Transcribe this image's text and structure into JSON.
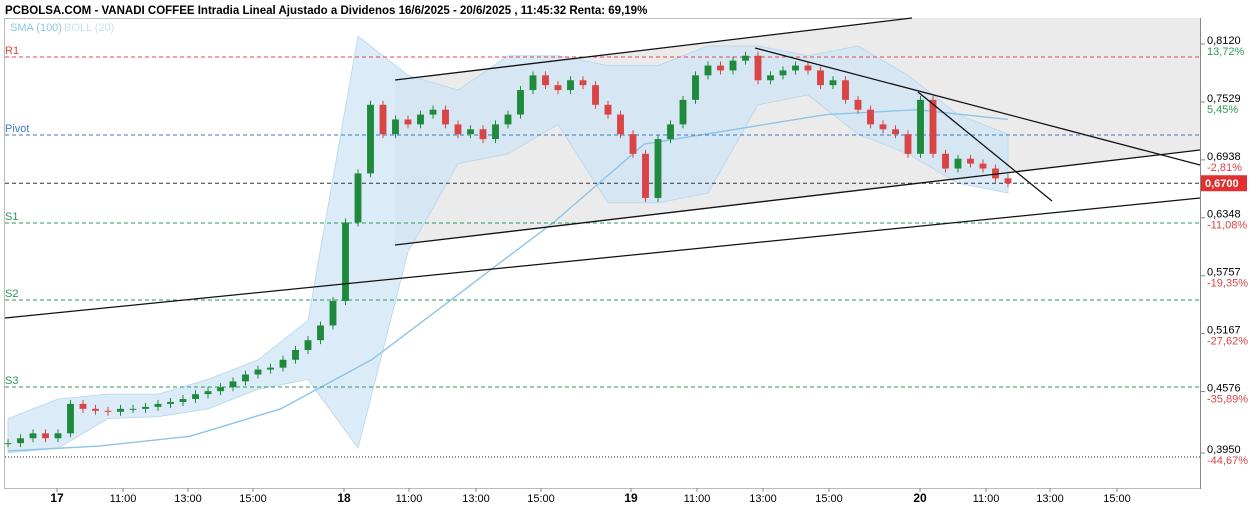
{
  "chart_data": {
    "type": "candlestick",
    "title": "PCBOLSA.COM - VANADI COFFEE Intradia Lineal Ajustado a Dividenos 16/6/2025 - 20/6/2025 , 11:45:32 Renta: 69,19%",
    "legend": [
      "SMA (100)",
      "BOLL (20)"
    ],
    "xticks": [
      "17",
      "11:00",
      "13:00",
      "15:00",
      "18",
      "11:00",
      "13:00",
      "15:00",
      "19",
      "11:00",
      "13:00",
      "15:00",
      "20",
      "11:00",
      "13:00",
      "15:00"
    ],
    "ylim": [
      0.36,
      0.84
    ],
    "yticks": [
      {
        "value": 0.812,
        "label": "0,8120"
      },
      {
        "value": 0.7529,
        "label": "0,7529"
      },
      {
        "value": 0.6938,
        "label": "0,6938"
      },
      {
        "value": 0.6348,
        "label": "0,6348"
      },
      {
        "value": 0.5757,
        "label": "0,5757"
      },
      {
        "value": 0.5167,
        "label": "0,5167"
      },
      {
        "value": 0.4576,
        "label": "0,4576"
      },
      {
        "value": 0.395,
        "label": "0,3950"
      }
    ],
    "pct_labels": [
      "13,72%",
      "5,45%",
      "-2,81%",
      "-11,08%",
      "-19,35%",
      "-27,62%",
      "-35,89%",
      "-44,67%"
    ],
    "last_price": {
      "value": 0.67,
      "label": "0,6700"
    },
    "levels": [
      {
        "name": "R1",
        "value": 0.7987,
        "color": "#e04848"
      },
      {
        "name": "Pivot",
        "value": 0.7192,
        "color": "#3a78c8"
      },
      {
        "name": "S1",
        "value": 0.6295,
        "color": "#2a9a5a"
      },
      {
        "name": "S2",
        "value": 0.551,
        "color": "#2a9a5a"
      },
      {
        "name": "S3",
        "value": 0.4623,
        "color": "#2a9a5a"
      }
    ],
    "up_color": "#1f8a3c",
    "down_color": "#d94545",
    "close": [
      0.405,
      0.41,
      0.415,
      0.41,
      0.415,
      0.445,
      0.44,
      0.438,
      0.437,
      0.44,
      0.44,
      0.442,
      0.445,
      0.447,
      0.45,
      0.455,
      0.458,
      0.462,
      0.468,
      0.475,
      0.48,
      0.482,
      0.49,
      0.5,
      0.51,
      0.525,
      0.55,
      0.63,
      0.68,
      0.75,
      0.72,
      0.735,
      0.73,
      0.74,
      0.745,
      0.73,
      0.72,
      0.725,
      0.715,
      0.73,
      0.74,
      0.765,
      0.78,
      0.77,
      0.765,
      0.775,
      0.77,
      0.75,
      0.74,
      0.72,
      0.7,
      0.655,
      0.715,
      0.73,
      0.755,
      0.78,
      0.79,
      0.785,
      0.795,
      0.8,
      0.775,
      0.78,
      0.785,
      0.79,
      0.785,
      0.77,
      0.775,
      0.755,
      0.745,
      0.73,
      0.725,
      0.72,
      0.7,
      0.755,
      0.7,
      0.685,
      0.695,
      0.69,
      0.685,
      0.675,
      0.67
    ],
    "sma": {
      "name": "SMA (100)",
      "color": "#8cc4ea",
      "values": [
        0.397,
        0.402,
        0.412,
        0.44,
        0.49,
        0.56,
        0.63,
        0.71,
        0.725,
        0.74,
        0.745,
        0.735
      ]
    },
    "boll": {
      "color": "#cfe5f5",
      "upper": [
        0.43,
        0.45,
        0.455,
        0.455,
        0.47,
        0.49,
        0.53,
        0.82,
        0.78,
        0.765,
        0.8,
        0.8,
        0.79,
        0.79,
        0.81,
        0.81,
        0.8,
        0.81,
        0.78,
        0.74,
        0.72
      ],
      "lower": [
        0.395,
        0.4,
        0.43,
        0.432,
        0.44,
        0.46,
        0.47,
        0.4,
        0.6,
        0.69,
        0.7,
        0.73,
        0.65,
        0.65,
        0.66,
        0.75,
        0.76,
        0.72,
        0.7,
        0.67,
        0.66
      ]
    }
  }
}
